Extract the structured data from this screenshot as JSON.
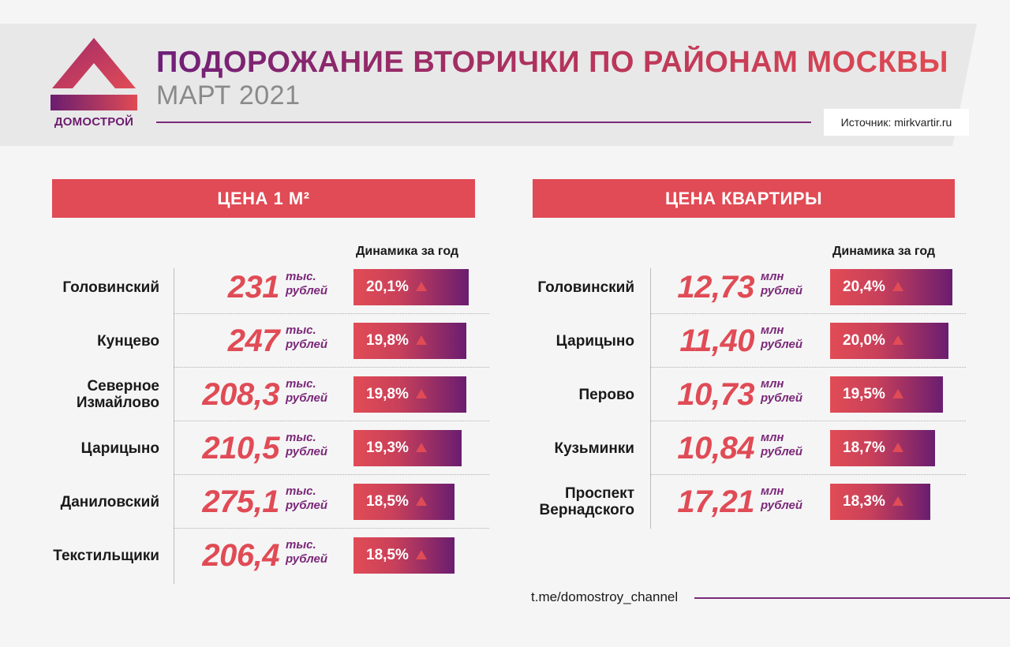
{
  "header": {
    "title": "ПОДОРОЖАНИЕ ВТОРИЧКИ ПО РАЙОНАМ МОСКВЫ",
    "subtitle": "МАРТ 2021",
    "source": "Источник: mirkvartir.ru",
    "logo_text": "ДОМОСТРОЙ"
  },
  "footer": {
    "link": "t.me/domostroy_channel"
  },
  "colors": {
    "accent_red": "#e04b55",
    "accent_purple": "#6a1d70",
    "unit_purple": "#7a2878"
  },
  "icons": {
    "trend": "up-triangle-icon"
  },
  "chart_data": [
    {
      "type": "bar",
      "title": "ЦЕНА 1 М²",
      "value_column_label": "Динамика за год",
      "price_unit": "тыс.\nрублей",
      "categories": [
        "Головинский",
        "Кунцево",
        "Северное\nИзмайлово",
        "Царицыно",
        "Даниловский",
        "Текстильщики"
      ],
      "prices": [
        "231",
        "247",
        "208,3",
        "210,5",
        "275,1",
        "206,4"
      ],
      "value_labels": [
        "20,1%",
        "19,8%",
        "19,8%",
        "19,3%",
        "18,5%",
        "18,5%"
      ],
      "values": [
        20.1,
        19.8,
        19.8,
        19.3,
        18.5,
        18.5
      ]
    },
    {
      "type": "bar",
      "title": "ЦЕНА КВАРТИРЫ",
      "value_column_label": "Динамика за год",
      "price_unit": "млн\nрублей",
      "categories": [
        "Головинский",
        "Царицыно",
        "Перово",
        "Кузьминки",
        "Проспект\nВернадского"
      ],
      "prices": [
        "12,73",
        "11,40",
        "10,73",
        "10,84",
        "17,21"
      ],
      "value_labels": [
        "20,4%",
        "20,0%",
        "19,5%",
        "18,7%",
        "18,3%"
      ],
      "values": [
        20.4,
        20.0,
        19.5,
        18.7,
        18.3
      ]
    }
  ]
}
